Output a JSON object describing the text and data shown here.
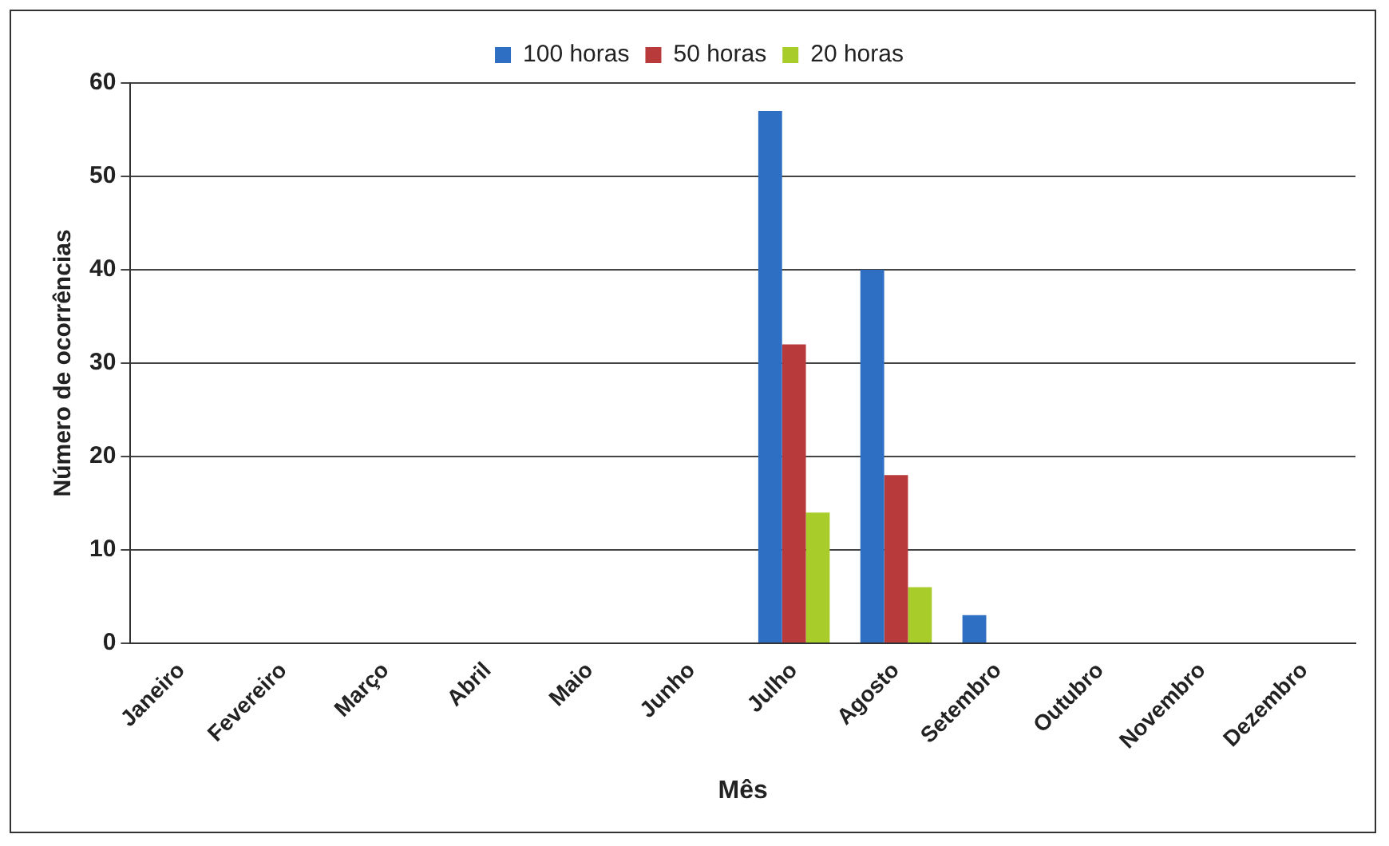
{
  "chart_data": {
    "type": "bar",
    "xlabel": "Mês",
    "ylabel": "Número de ocorrências",
    "categories": [
      "Janeiro",
      "Fevereiro",
      "Março",
      "Abril",
      "Maio",
      "Junho",
      "Julho",
      "Agosto",
      "Setembro",
      "Outubro",
      "Novembro",
      "Dezembro"
    ],
    "series": [
      {
        "name": "100 horas",
        "color": "#2e6fc4",
        "values": [
          0,
          0,
          0,
          0,
          0,
          0,
          57,
          40,
          3,
          0,
          0,
          0
        ]
      },
      {
        "name": "50 horas",
        "color": "#b83a3a",
        "values": [
          0,
          0,
          0,
          0,
          0,
          0,
          32,
          18,
          0,
          0,
          0,
          0
        ]
      },
      {
        "name": "20 horas",
        "color": "#a8cc2a",
        "values": [
          0,
          0,
          0,
          0,
          0,
          0,
          14,
          6,
          0,
          0,
          0,
          0
        ]
      }
    ],
    "ylim": [
      0,
      60
    ],
    "yticks": [
      0,
      10,
      20,
      30,
      40,
      50,
      60
    ],
    "grid": "y",
    "legend": "top"
  }
}
